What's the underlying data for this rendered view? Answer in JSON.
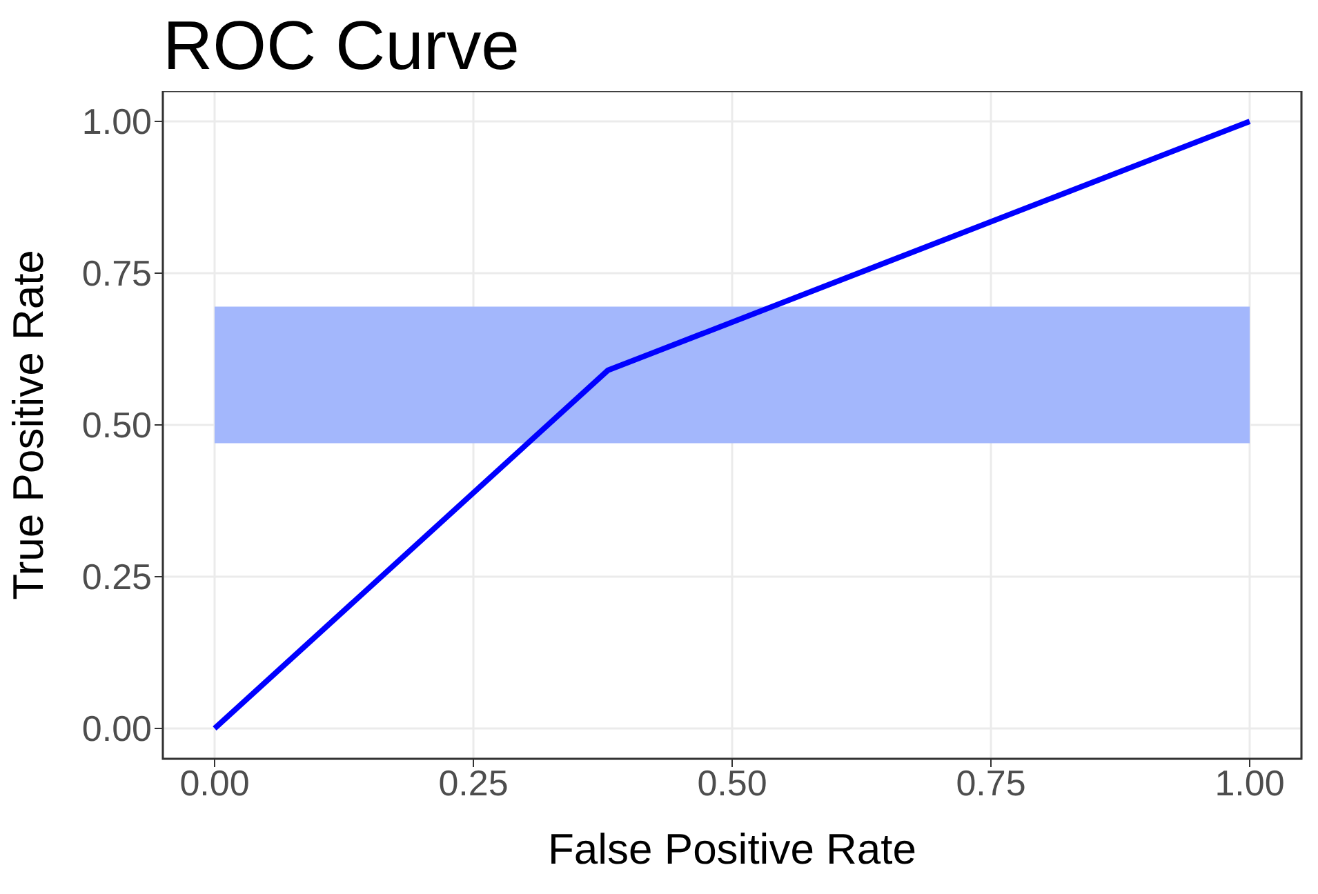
{
  "chart_data": {
    "type": "line",
    "title": "ROC Curve",
    "xlabel": "False Positive Rate",
    "ylabel": "True Positive Rate",
    "series": [
      {
        "type": "area",
        "color": "#a3b7fc",
        "x": [
          0,
          1
        ],
        "values": [
          null,
          null
        ],
        "lower": [
          0.47,
          0.47
        ],
        "upper": [
          0.695,
          0.695
        ]
      },
      {
        "color": "#0000ff",
        "x": [
          0,
          0.38,
          1
        ],
        "values": [
          0,
          0.59,
          1
        ]
      }
    ],
    "xlim": [
      -0.05,
      1.05
    ],
    "xticks": [
      {
        "value": 0,
        "label": "0.00"
      },
      0.25,
      {
        "value": 0.5,
        "label": "0.50"
      },
      0.75,
      {
        "value": 1,
        "label": "1.00"
      }
    ],
    "ylim": [
      -0.05,
      1.05
    ],
    "yticks": [
      {
        "value": 0,
        "label": "0.00"
      },
      0.25,
      {
        "value": 0.5,
        "label": "0.50"
      },
      0.75,
      {
        "value": 1,
        "label": "1.00"
      }
    ],
    "grid": true,
    "marker": "none",
    "line_style": "solid"
  }
}
